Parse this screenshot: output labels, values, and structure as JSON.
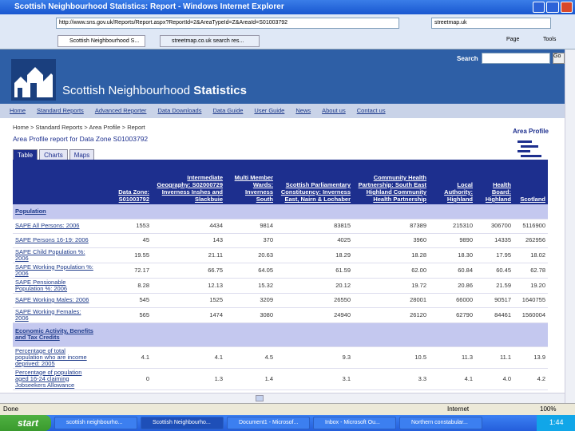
{
  "window": {
    "title": "Scottish Neighbourhood Statistics: Report - Windows Internet Explorer",
    "address": "http://www.sns.gov.uk/Reports/Report.aspx?ReportId=2&AreaTypeId=Z&AreaId=S01003792",
    "search_box": "streetmap.uk",
    "tabs": [
      "Scottish Neighbourhood S...",
      "streetmap.co.uk search res..."
    ],
    "page_menu": "Page",
    "tools_menu": "Tools",
    "status": "Done",
    "zone": "Internet",
    "zoom": "100%"
  },
  "site": {
    "search_label": "Search",
    "search_button": "Go",
    "logo_plain": "Scottish Neighbourhood",
    "logo_bold": "Statistics",
    "nav": [
      "Home",
      "Standard Reports",
      "Advanced Reporter",
      "Data Downloads",
      "Data Guide",
      "User Guide",
      "News",
      "About us",
      "Contact us"
    ],
    "breadcrumb": "Home > Standard Reports > Area Profile > Report",
    "heading": "Area Profile report for Data Zone S01003792",
    "sidebar_title": "Area Profile",
    "view_tabs": [
      "Table",
      "Charts",
      "Maps"
    ]
  },
  "table": {
    "columns": [
      "Data Zone: S01003792",
      "Intermediate Geography: S02000729 Inverness Inshes and Slackbuie",
      "Multi Member Wards: Inverness South",
      "Scottish Parliamentary Constituency: Inverness East, Nairn & Lochaber",
      "Community Health Partnership: South East Highland Community Health Partnership",
      "Local Authority: Highland",
      "Health Board: Highland",
      "Scotland"
    ],
    "sections": [
      {
        "title": "Population",
        "rows": [
          [
            "SAPE All Persons: 2006",
            "1553",
            "4434",
            "9814",
            "83815",
            "87389",
            "215310",
            "306700",
            "5116900"
          ],
          [
            "SAPE Persons 16-19: 2006",
            "45",
            "143",
            "370",
            "4025",
            "3960",
            "9890",
            "14335",
            "262956"
          ],
          [
            "SAPE Child Population %: 2006",
            "19.55",
            "21.11",
            "20.63",
            "18.29",
            "18.28",
            "18.30",
            "17.95",
            "18.02"
          ],
          [
            "SAPE Working Population %: 2006",
            "72.17",
            "66.75",
            "64.05",
            "61.59",
            "62.00",
            "60.84",
            "60.45",
            "62.78"
          ],
          [
            "SAPE Pensionable Population %: 2006",
            "8.28",
            "12.13",
            "15.32",
            "20.12",
            "19.72",
            "20.86",
            "21.59",
            "19.20"
          ],
          [
            "SAPE Working Males: 2006",
            "545",
            "1525",
            "3209",
            "26550",
            "28001",
            "66000",
            "90517",
            "1640755"
          ],
          [
            "SAPE Working Females: 2006",
            "565",
            "1474",
            "3080",
            "24940",
            "26120",
            "62790",
            "84461",
            "1560004"
          ]
        ]
      },
      {
        "title": "Economic Activity, Benefits and Tax Credits",
        "rows": [
          [
            "Percentage of total population who are income deprived: 2005",
            "4.1",
            "4.1",
            "4.5",
            "9.3",
            "10.5",
            "11.3",
            "11.1",
            "13.9"
          ],
          [
            "Percentage of population aged 16-24 claiming Jobseekers Allowance",
            "0",
            "1.3",
            "1.4",
            "3.1",
            "3.3",
            "4.1",
            "4.0",
            "4.2"
          ]
        ]
      }
    ]
  },
  "taskbar": {
    "start": "start",
    "items": [
      "scottish neighbourho...",
      "Scottish Neighbourho...",
      "Document1 - Microsof...",
      "Inbox - Microsoft Ou...",
      "Northern constabular..."
    ],
    "time": "1:44"
  }
}
